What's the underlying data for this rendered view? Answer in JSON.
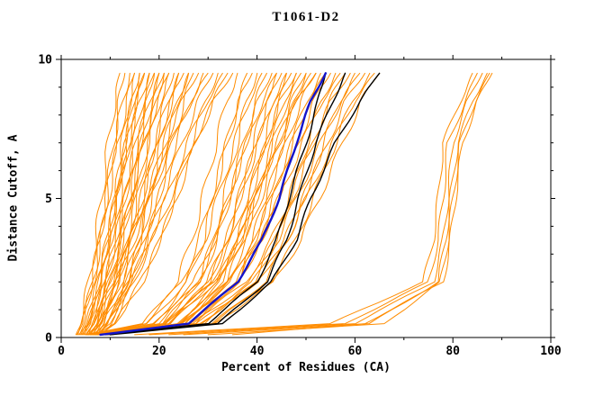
{
  "chart_data": {
    "type": "line",
    "title": "T1061-D2",
    "xlabel": "Percent of Residues (CA)",
    "ylabel": "Distance Cutoff, A",
    "xlim": [
      0,
      100
    ],
    "ylim": [
      0,
      10
    ],
    "x_ticks": [
      0,
      20,
      40,
      60,
      80,
      100
    ],
    "x_minor": [
      10,
      30,
      50,
      70,
      90
    ],
    "y_ticks": [
      0,
      5,
      10
    ],
    "y_minor": [
      1,
      2,
      3,
      4,
      6,
      7,
      8,
      9
    ],
    "grid": false,
    "legend": "none",
    "background": "#ffffff",
    "frame_color": "#000000",
    "y_grid": [
      0.1,
      0.5,
      2,
      3.5,
      5,
      7,
      8.5,
      9.5
    ],
    "profiles": {
      "steep": [
        0,
        0.1,
        0.3,
        0.45,
        0.58,
        0.74,
        0.88,
        1
      ],
      "sig": [
        0,
        0.38,
        0.6,
        0.7,
        0.77,
        0.86,
        0.93,
        1
      ]
    },
    "series_groups": [
      {
        "name": "model-curve-orange-steep",
        "color": "#ff8c00",
        "width": 1,
        "jitter": 0.5,
        "mode": "param",
        "profile": "steep",
        "curves": [
          [
            3,
            12,
            1
          ],
          [
            3.2,
            13,
            0.9
          ],
          [
            3.4,
            14,
            1.1
          ],
          [
            3.6,
            15,
            0.8
          ],
          [
            3.8,
            15,
            1.2
          ],
          [
            4,
            16,
            1
          ],
          [
            4.2,
            16,
            0.85
          ],
          [
            4.4,
            17,
            1.15
          ],
          [
            4.6,
            17,
            0.95
          ],
          [
            4.8,
            18,
            1.25
          ],
          [
            5,
            18,
            0.9
          ],
          [
            5.2,
            19,
            1.05
          ],
          [
            5.4,
            19,
            0.8
          ],
          [
            5.6,
            20,
            1.2
          ],
          [
            5.8,
            20,
            0.95
          ],
          [
            6,
            21,
            1.1
          ],
          [
            6.2,
            21,
            0.85
          ],
          [
            6.4,
            22,
            1
          ],
          [
            6.6,
            22,
            1.3
          ],
          [
            6.8,
            23,
            0.9
          ],
          [
            7,
            24,
            1.1
          ],
          [
            7.2,
            24,
            0.8
          ],
          [
            7.4,
            25,
            1.2
          ],
          [
            7.6,
            26,
            0.95
          ],
          [
            7.8,
            26,
            1.05
          ],
          [
            8,
            27,
            0.85
          ],
          [
            5,
            28,
            1.15
          ],
          [
            5.5,
            29,
            0.9
          ],
          [
            6,
            30,
            1.25
          ],
          [
            6.5,
            31,
            1
          ],
          [
            7,
            32,
            0.8
          ],
          [
            7.5,
            33,
            1.1
          ],
          [
            8,
            34,
            0.95
          ],
          [
            8.5,
            35,
            1.2
          ]
        ]
      },
      {
        "name": "model-curve-orange-mid",
        "color": "#ff8c00",
        "width": 1,
        "jitter": 0.5,
        "mode": "param",
        "profile": "sig",
        "curves": [
          [
            5,
            36,
            1
          ],
          [
            5.3,
            38,
            0.9
          ],
          [
            5.6,
            39,
            1.1
          ],
          [
            5.9,
            40,
            0.85
          ],
          [
            6.2,
            41,
            1.15
          ],
          [
            6.5,
            42,
            0.95
          ],
          [
            6.8,
            43,
            1.05
          ],
          [
            7.1,
            44,
            0.9
          ],
          [
            7.4,
            44,
            1.2
          ],
          [
            7.7,
            45,
            1
          ],
          [
            8,
            46,
            0.85
          ],
          [
            8.3,
            46,
            1.1
          ],
          [
            8.6,
            47,
            0.95
          ],
          [
            8.9,
            48,
            1.15
          ],
          [
            9.2,
            48,
            0.9
          ],
          [
            9.5,
            49,
            1.05
          ],
          [
            9.8,
            50,
            1
          ],
          [
            10,
            50,
            0.85
          ],
          [
            6,
            51,
            1.1
          ],
          [
            6.4,
            52,
            0.95
          ],
          [
            6.8,
            52,
            1.2
          ],
          [
            7.2,
            53,
            0.9
          ],
          [
            7.6,
            54,
            1.05
          ],
          [
            8,
            55,
            1
          ],
          [
            8.4,
            56,
            0.85
          ],
          [
            8.8,
            57,
            1.15
          ],
          [
            9.2,
            58,
            0.95
          ],
          [
            9.6,
            59,
            1.1
          ],
          [
            10,
            60,
            0.9
          ],
          [
            7,
            61,
            1.05
          ],
          [
            7.5,
            62,
            1
          ],
          [
            8,
            63,
            0.9
          ],
          [
            8.5,
            64,
            1.1
          ],
          [
            9,
            65,
            0.95
          ]
        ]
      },
      {
        "name": "model-curve-orange-right-group",
        "color": "#ff8c00",
        "width": 1,
        "jitter": 0.3,
        "mode": "points",
        "curves": [
          [
            15,
            55,
            74,
            76,
            77,
            78,
            81.5,
            84
          ],
          [
            18,
            58,
            75,
            77,
            78,
            79,
            82.5,
            85
          ],
          [
            22,
            60,
            76,
            78,
            79,
            80,
            83,
            86
          ],
          [
            25,
            63,
            77,
            78.5,
            79.5,
            81,
            84,
            87
          ],
          [
            30,
            66,
            77.5,
            79,
            80,
            81.5,
            84.5,
            87.5
          ],
          [
            35,
            62,
            78,
            79.5,
            80.5,
            82,
            85,
            88
          ]
        ]
      },
      {
        "name": "reference-curve-black",
        "color": "#000000",
        "width": 1.4,
        "jitter": 0.25,
        "mode": "points",
        "curves": [
          [
            8,
            30,
            40,
            44,
            46.5,
            50,
            52.5,
            54
          ],
          [
            9,
            32,
            42,
            46,
            48.5,
            52,
            55.5,
            58
          ],
          [
            10,
            33,
            43,
            48,
            51,
            56,
            61,
            65
          ]
        ]
      },
      {
        "name": "highlighted-curve-blue",
        "color": "#1414cc",
        "width": 2.4,
        "jitter": 0.18,
        "mode": "points",
        "curves": [
          [
            8,
            26,
            36,
            41,
            44.5,
            48,
            51,
            54
          ]
        ]
      }
    ]
  }
}
